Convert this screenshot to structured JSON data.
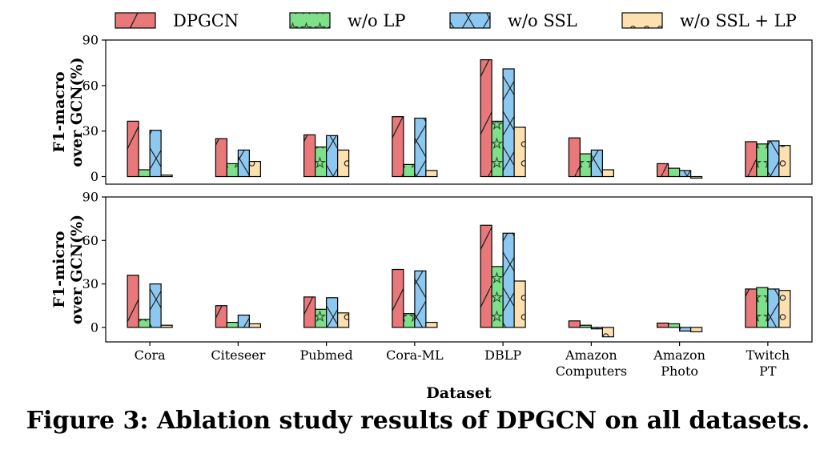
{
  "caption": "Figure 3: Ablation study results of DPGCN on all datasets.",
  "chart_data": {
    "type": "bar",
    "categories": [
      "Cora",
      "Citeseer",
      "Pubmed",
      "Cora-ML",
      "DBLP",
      "Amazon\nComputers",
      "Amazon\nPhoto",
      "Twitch\nPT"
    ],
    "xlabel": "Dataset",
    "legend": {
      "placement": "top",
      "entries": [
        "DPGCN",
        "w/o LP",
        "w/o SSL",
        "w/o SSL + LP"
      ]
    },
    "series_styles": [
      {
        "color": "#e8787a",
        "hatch": "diagonal"
      },
      {
        "color": "#7ee08a",
        "hatch": "stars"
      },
      {
        "color": "#8cc8f0",
        "hatch": "crosses"
      },
      {
        "color": "#fce0b0",
        "hatch": "circles"
      }
    ],
    "panels": [
      {
        "ylabel": [
          "F1-macro",
          "over GCN(%)"
        ],
        "ylim": [
          -5,
          90
        ],
        "yticks": [
          0,
          30,
          60,
          90
        ],
        "grid": false,
        "series": [
          {
            "name": "DPGCN",
            "values": [
              36.5,
              25,
              27.5,
              39.5,
              77,
              25.5,
              8.5,
              23
            ]
          },
          {
            "name": "w/o LP",
            "values": [
              4.5,
              8.5,
              19.5,
              8,
              36.5,
              15,
              5.5,
              21.5
            ]
          },
          {
            "name": "w/o SSL",
            "values": [
              30.5,
              17.5,
              27,
              38.5,
              71,
              17.5,
              4,
              23.5
            ]
          },
          {
            "name": "w/o SSL + LP",
            "values": [
              1,
              10,
              17.5,
              4,
              32.5,
              4.5,
              -1,
              20.5
            ]
          }
        ]
      },
      {
        "ylabel": [
          "F1-micro",
          "over GCN(%)"
        ],
        "ylim": [
          -10,
          90
        ],
        "yticks": [
          0,
          30,
          60,
          90
        ],
        "grid": false,
        "series": [
          {
            "name": "DPGCN",
            "values": [
              36,
              15,
              21,
              40,
              70.5,
              4.5,
              3,
              26.5
            ]
          },
          {
            "name": "w/o LP",
            "values": [
              5.5,
              3.5,
              12.5,
              9.5,
              42,
              1.5,
              2.5,
              27.5
            ]
          },
          {
            "name": "w/o SSL",
            "values": [
              30,
              8.5,
              20.5,
              39,
              65,
              -1,
              -2.5,
              26.5
            ]
          },
          {
            "name": "w/o SSL + LP",
            "values": [
              1.5,
              2.5,
              10,
              3.5,
              32,
              -6.5,
              -3,
              25.5
            ]
          }
        ]
      }
    ]
  }
}
